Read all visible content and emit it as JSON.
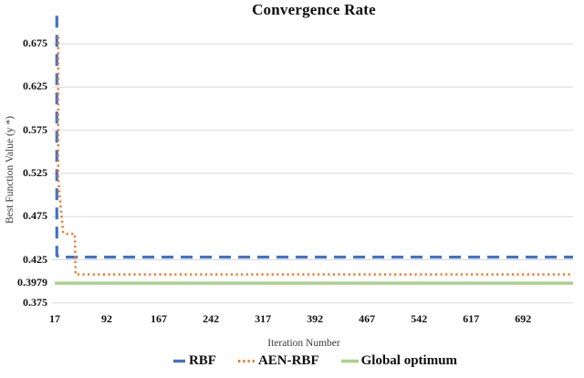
{
  "chart_data": {
    "type": "line",
    "title": "Convergence Rate",
    "xlabel": "Iteration Number",
    "ylabel": "Best Function Value (y *)",
    "x_ticks": [
      17,
      92,
      167,
      242,
      317,
      392,
      467,
      542,
      617,
      692
    ],
    "y_ticks": [
      {
        "label": "0.675",
        "value": 0.675,
        "grid": true
      },
      {
        "label": "0.625",
        "value": 0.625,
        "grid": true
      },
      {
        "label": "0.575",
        "value": 0.575,
        "grid": true
      },
      {
        "label": "0.525",
        "value": 0.525,
        "grid": true
      },
      {
        "label": "0.475",
        "value": 0.475,
        "grid": true
      },
      {
        "label": "0.425",
        "value": 0.425,
        "grid": true
      },
      {
        "label": "0.3979",
        "value": 0.3979,
        "grid": false
      },
      {
        "label": "0.375",
        "value": 0.375,
        "grid": true
      }
    ],
    "x_range": [
      17,
      764
    ],
    "y_range": [
      0.375,
      0.71
    ],
    "grid": true,
    "grid_color": "#D9D9D9",
    "legend_position": "bottom",
    "series": [
      {
        "name": "RBF",
        "color": "#4472C4",
        "style": "dashed",
        "points": [
          [
            20,
            0.7075
          ],
          [
            20,
            0.43
          ],
          [
            23,
            0.428
          ],
          [
            764,
            0.428
          ]
        ]
      },
      {
        "name": "AEN-RBF",
        "color": "#ED7D31",
        "style": "dotted",
        "points": [
          [
            22,
            0.683
          ],
          [
            22,
            0.52
          ],
          [
            24,
            0.5
          ],
          [
            29,
            0.457
          ],
          [
            31,
            0.455
          ],
          [
            46,
            0.455
          ],
          [
            47,
            0.408
          ],
          [
            764,
            0.408
          ]
        ]
      },
      {
        "name": "Global optimum",
        "color": "#A9D18E",
        "style": "solid",
        "points": [
          [
            17,
            0.3979
          ],
          [
            764,
            0.3979
          ]
        ]
      }
    ]
  }
}
